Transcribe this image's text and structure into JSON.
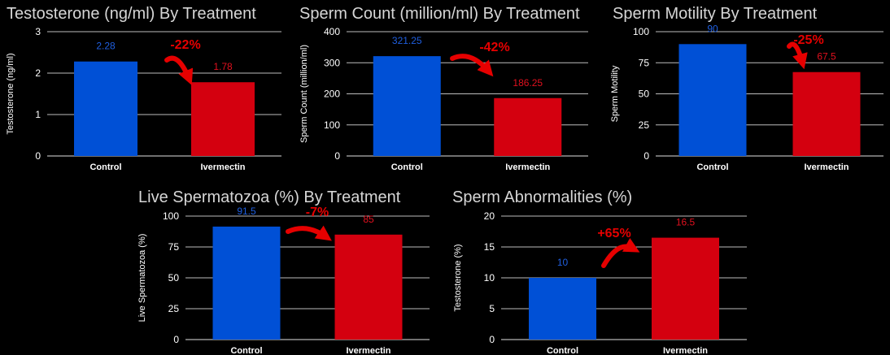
{
  "colors": {
    "control": "#0050d6",
    "ivermectin": "#d4000f",
    "arrow": "#e60000",
    "grid": "#bdbdbd",
    "text": "#ffffff",
    "title": "#d6d6d6",
    "control_label": "#1f5fe0",
    "ivermectin_label": "#e0101e"
  },
  "chart_data": [
    {
      "type": "bar",
      "title": "Testosterone (ng/ml) By Treatment",
      "xlabel": "",
      "ylabel": "Testosterone (ng/ml)",
      "categories": [
        "Control",
        "Ivermectin"
      ],
      "values": [
        2.28,
        1.78
      ],
      "value_labels": [
        "2.28",
        "1.78"
      ],
      "ylim": [
        0,
        3
      ],
      "yticks": [
        0,
        1,
        2,
        3
      ],
      "grid": true,
      "annotation": "-22%"
    },
    {
      "type": "bar",
      "title": "Sperm Count (million/ml) By Treatment",
      "xlabel": "",
      "ylabel": "Sperm Count (million/ml)",
      "categories": [
        "Control",
        "Ivermectin"
      ],
      "values": [
        321.25,
        186.25
      ],
      "value_labels": [
        "321.25",
        "186.25"
      ],
      "ylim": [
        0,
        400
      ],
      "yticks": [
        0,
        100,
        200,
        300,
        400
      ],
      "grid": true,
      "annotation": "-42%"
    },
    {
      "type": "bar",
      "title": "Sperm Motility By Treatment",
      "xlabel": "",
      "ylabel": "Sperm Motility",
      "categories": [
        "Control",
        "Ivermectin"
      ],
      "values": [
        90,
        67.5
      ],
      "value_labels": [
        "90",
        "67.5"
      ],
      "ylim": [
        0,
        100
      ],
      "yticks": [
        0,
        25,
        50,
        75,
        100
      ],
      "grid": true,
      "annotation": "-25%"
    },
    {
      "type": "bar",
      "title": "Live Spermatozoa (%) By Treatment",
      "xlabel": "",
      "ylabel": "Live Spermatozoa (%)",
      "categories": [
        "Control",
        "Ivermectin"
      ],
      "values": [
        91.5,
        85
      ],
      "value_labels": [
        "91.5",
        "85"
      ],
      "ylim": [
        0,
        100
      ],
      "yticks": [
        0,
        25,
        50,
        75,
        100
      ],
      "grid": true,
      "annotation": "-7%"
    },
    {
      "type": "bar",
      "title": "Sperm Abnormalities (%)",
      "xlabel": "",
      "ylabel": "Testosterone (%)",
      "categories": [
        "Control",
        "Ivermectin"
      ],
      "values": [
        10,
        16.5
      ],
      "value_labels": [
        "10",
        "16.5"
      ],
      "ylim": [
        0,
        20
      ],
      "yticks": [
        0,
        5,
        10,
        15,
        20
      ],
      "grid": true,
      "annotation": "+65%"
    }
  ]
}
